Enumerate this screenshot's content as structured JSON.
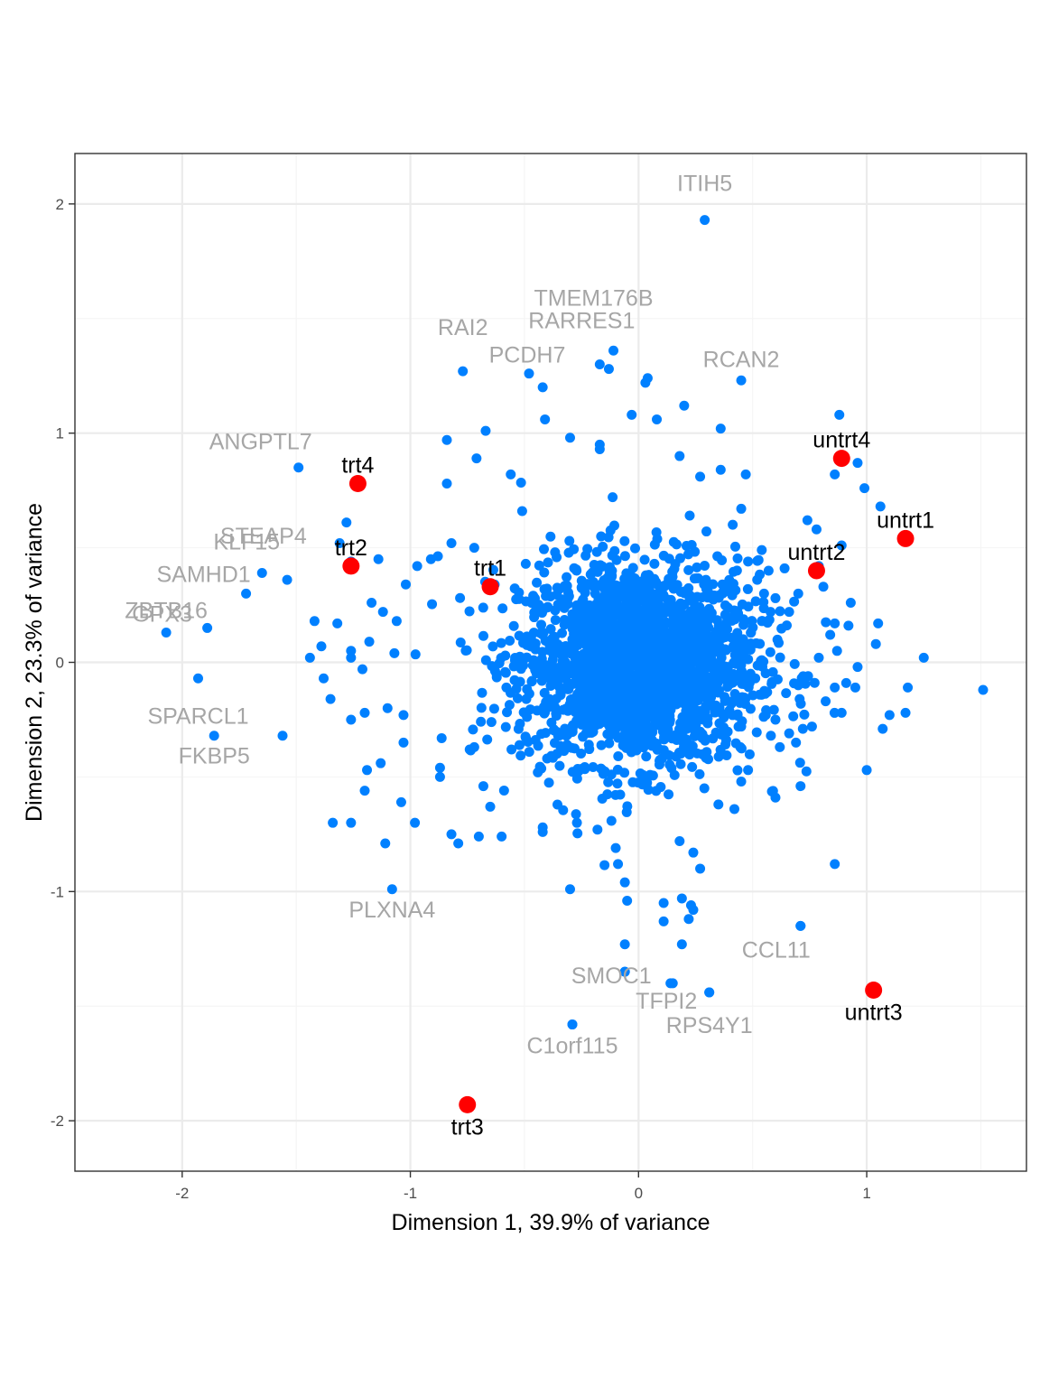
{
  "chart_data": {
    "type": "scatter",
    "title": "",
    "xlabel": "Dimension 1, 39.9% of variance",
    "ylabel": "Dimension 2, 23.3% of variance",
    "xlim": [
      -2.47,
      1.7
    ],
    "ylim": [
      -2.22,
      2.22
    ],
    "xticks": [
      -2,
      -1,
      0,
      1
    ],
    "yticks": [
      -2,
      -1,
      0,
      1,
      2
    ],
    "xtick_labels": [
      "-2",
      "-1",
      "0",
      "1"
    ],
    "ytick_labels": [
      "-2",
      "-1",
      "0",
      "1",
      "2"
    ],
    "grid": true,
    "legend": "none",
    "colors": {
      "genes": "#0080ff",
      "samples": "#ff0000",
      "gene_label": "#a6a6a6",
      "sample_label": "#000000",
      "grid_major": "#ebebeb",
      "grid_minor": "#f5f5f5",
      "panel_border": "#333333"
    },
    "samples": [
      {
        "label": "trt1",
        "x": -0.65,
        "y": 0.33
      },
      {
        "label": "trt2",
        "x": -1.26,
        "y": 0.42
      },
      {
        "label": "trt3",
        "x": -0.75,
        "y": -1.93
      },
      {
        "label": "trt4",
        "x": -1.23,
        "y": 0.78
      },
      {
        "label": "untrt1",
        "x": 1.17,
        "y": 0.54
      },
      {
        "label": "untrt2",
        "x": 0.78,
        "y": 0.4
      },
      {
        "label": "untrt3",
        "x": 1.03,
        "y": -1.43
      },
      {
        "label": "untrt4",
        "x": 0.89,
        "y": 0.89
      }
    ],
    "labeled_genes": [
      {
        "label": "ITIH5",
        "x": 0.29,
        "y": 1.93
      },
      {
        "label": "TMEM176B",
        "x": -0.11,
        "y": 1.36
      },
      {
        "label": "RARRES1",
        "x": -0.17,
        "y": 1.3
      },
      {
        "label": "RAI2",
        "x": -0.77,
        "y": 1.27
      },
      {
        "label": "PCDH7",
        "x": -0.48,
        "y": 1.26
      },
      {
        "label": "RCAN2",
        "x": 0.45,
        "y": 1.23
      },
      {
        "label": "ANGPTL7",
        "x": -1.49,
        "y": 0.85
      },
      {
        "label": "STEAP4",
        "x": -1.26,
        "y": 0.44
      },
      {
        "label": "KLF15",
        "x": -1.65,
        "y": 0.39
      },
      {
        "label": "SAMHD1",
        "x": -1.72,
        "y": 0.3
      },
      {
        "label": "GPX3",
        "x": -1.89,
        "y": 0.15
      },
      {
        "label": "ZBTB16",
        "x": -2.07,
        "y": 0.13
      },
      {
        "label": "SPARCL1",
        "x": -1.93,
        "y": -0.07
      },
      {
        "label": "FKBP5",
        "x": -1.86,
        "y": -0.32
      },
      {
        "label": "PLXNA4",
        "x": -1.08,
        "y": -0.99
      },
      {
        "label": "CCL11",
        "x": 0.71,
        "y": -1.15
      },
      {
        "label": "SMOC1",
        "x": -0.06,
        "y": -1.35
      },
      {
        "label": "TFPI2",
        "x": 0.15,
        "y": -1.4
      },
      {
        "label": "RPS4Y1",
        "x": 0.31,
        "y": -1.44
      },
      {
        "label": "C1orf115",
        "x": -0.29,
        "y": -1.58
      }
    ],
    "outlier_genes": [
      [
        1.51,
        -0.12
      ],
      [
        1.25,
        0.02
      ],
      [
        1.18,
        -0.11
      ],
      [
        1.17,
        -0.22
      ],
      [
        1.1,
        -0.23
      ],
      [
        1.07,
        -0.29
      ],
      [
        1.06,
        0.68
      ],
      [
        1.04,
        0.08
      ],
      [
        1.05,
        0.17
      ],
      [
        1.0,
        -0.47
      ],
      [
        0.99,
        0.76
      ],
      [
        0.96,
        0.87
      ],
      [
        0.93,
        0.26
      ],
      [
        0.92,
        0.16
      ],
      [
        0.89,
        -0.22
      ],
      [
        0.89,
        0.51
      ],
      [
        0.86,
        -0.88
      ],
      [
        0.88,
        1.08
      ],
      [
        0.86,
        -0.11
      ],
      [
        0.86,
        0.82
      ],
      [
        0.78,
        0.58
      ],
      [
        0.74,
        0.62
      ],
      [
        0.71,
        -0.54
      ],
      [
        0.72,
        -0.29
      ],
      [
        0.6,
        -0.59
      ],
      [
        0.54,
        0.49
      ],
      [
        0.47,
        0.82
      ],
      [
        0.45,
        0.67
      ],
      [
        0.36,
        1.02
      ],
      [
        0.36,
        0.84
      ],
      [
        0.27,
        0.81
      ],
      [
        0.18,
        0.9
      ],
      [
        0.2,
        1.12
      ],
      [
        0.08,
        1.06
      ],
      [
        0.04,
        1.24
      ],
      [
        0.03,
        1.22
      ],
      [
        -0.03,
        1.08
      ],
      [
        -0.13,
        1.28
      ],
      [
        -0.17,
        0.95
      ],
      [
        -0.17,
        0.93
      ],
      [
        -0.3,
        0.98
      ],
      [
        -0.42,
        1.2
      ],
      [
        -0.41,
        1.06
      ],
      [
        -0.56,
        0.82
      ],
      [
        -0.67,
        1.01
      ],
      [
        -0.71,
        0.89
      ],
      [
        -0.84,
        0.97
      ],
      [
        -0.84,
        0.78
      ],
      [
        -0.51,
        0.66
      ],
      [
        -0.72,
        0.5
      ],
      [
        -0.82,
        0.52
      ],
      [
        -0.91,
        0.45
      ],
      [
        -0.97,
        0.42
      ],
      [
        -1.02,
        0.34
      ],
      [
        -1.14,
        0.45
      ],
      [
        -1.17,
        0.26
      ],
      [
        -1.12,
        0.22
      ],
      [
        -1.06,
        0.18
      ],
      [
        -1.18,
        0.09
      ],
      [
        -1.07,
        0.04
      ],
      [
        -1.26,
        0.05
      ],
      [
        -1.32,
        0.17
      ],
      [
        -1.42,
        0.18
      ],
      [
        -1.39,
        0.07
      ],
      [
        -1.44,
        0.02
      ],
      [
        -1.38,
        -0.07
      ],
      [
        -1.35,
        -0.16
      ],
      [
        -1.26,
        0.02
      ],
      [
        -1.21,
        -0.03
      ],
      [
        -1.2,
        -0.22
      ],
      [
        -1.26,
        -0.25
      ],
      [
        -1.19,
        -0.47
      ],
      [
        -1.2,
        -0.56
      ],
      [
        -1.13,
        -0.44
      ],
      [
        -1.1,
        -0.2
      ],
      [
        -1.03,
        -0.23
      ],
      [
        -1.03,
        -0.35
      ],
      [
        -1.04,
        -0.61
      ],
      [
        -0.98,
        -0.7
      ],
      [
        -1.11,
        -0.79
      ],
      [
        -1.26,
        -0.7
      ],
      [
        -1.34,
        -0.7
      ],
      [
        -1.56,
        -0.32
      ],
      [
        -1.54,
        0.36
      ],
      [
        -1.28,
        0.61
      ],
      [
        -1.31,
        0.52
      ],
      [
        -0.87,
        -0.46
      ],
      [
        -0.87,
        -0.5
      ],
      [
        -0.82,
        -0.75
      ],
      [
        -0.79,
        -0.79
      ],
      [
        -0.72,
        -0.37
      ],
      [
        -0.74,
        -0.38
      ],
      [
        -0.68,
        -0.54
      ],
      [
        -0.65,
        -0.63
      ],
      [
        -0.7,
        -0.76
      ],
      [
        -0.6,
        -0.76
      ],
      [
        -0.42,
        -0.72
      ],
      [
        -0.42,
        -0.74
      ],
      [
        -0.3,
        -0.99
      ],
      [
        -0.27,
        -0.7
      ],
      [
        -0.18,
        -0.73
      ],
      [
        -0.1,
        -0.81
      ],
      [
        -0.09,
        -0.88
      ],
      [
        -0.06,
        -0.96
      ],
      [
        -0.05,
        -1.04
      ],
      [
        -0.06,
        -1.23
      ],
      [
        0.11,
        -1.05
      ],
      [
        0.11,
        -1.13
      ],
      [
        0.18,
        -0.78
      ],
      [
        0.24,
        -0.83
      ],
      [
        0.27,
        -0.9
      ],
      [
        0.19,
        -1.03
      ],
      [
        0.23,
        -1.06
      ],
      [
        0.24,
        -1.08
      ],
      [
        0.22,
        -1.12
      ],
      [
        0.19,
        -1.23
      ],
      [
        0.14,
        -1.4
      ],
      [
        0.31,
        -1.44
      ],
      [
        -0.29,
        -1.58
      ],
      [
        -0.06,
        -1.35
      ],
      [
        0.71,
        -1.15
      ],
      [
        0.35,
        -0.62
      ],
      [
        0.42,
        -0.64
      ],
      [
        0.45,
        -0.52
      ],
      [
        0.48,
        -0.47
      ],
      [
        0.58,
        -0.32
      ],
      [
        0.6,
        -0.25
      ],
      [
        0.66,
        -0.31
      ],
      [
        0.69,
        -0.35
      ],
      [
        0.7,
        -0.1
      ],
      [
        0.76,
        -0.28
      ],
      [
        0.82,
        -0.17
      ],
      [
        0.84,
        0.12
      ],
      [
        0.79,
        0.42
      ],
      [
        0.81,
        0.33
      ],
      [
        0.7,
        0.3
      ],
      [
        0.64,
        0.41
      ],
      [
        0.66,
        0.22
      ],
      [
        0.86,
        0.17
      ],
      [
        0.96,
        -0.02
      ],
      [
        0.95,
        -0.11
      ],
      [
        0.91,
        -0.09
      ],
      [
        0.87,
        0.05
      ],
      [
        0.79,
        0.02
      ],
      [
        0.6,
        0.28
      ],
      [
        0.57,
        0.4
      ],
      [
        0.55,
        0.3
      ],
      [
        0.52,
        0.36
      ],
      [
        0.48,
        0.44
      ],
      [
        0.54,
        0.18
      ]
    ],
    "cluster": {
      "cx": 0.0,
      "cy": 0.0,
      "sx": 0.26,
      "sy": 0.22,
      "n": 2200
    }
  }
}
